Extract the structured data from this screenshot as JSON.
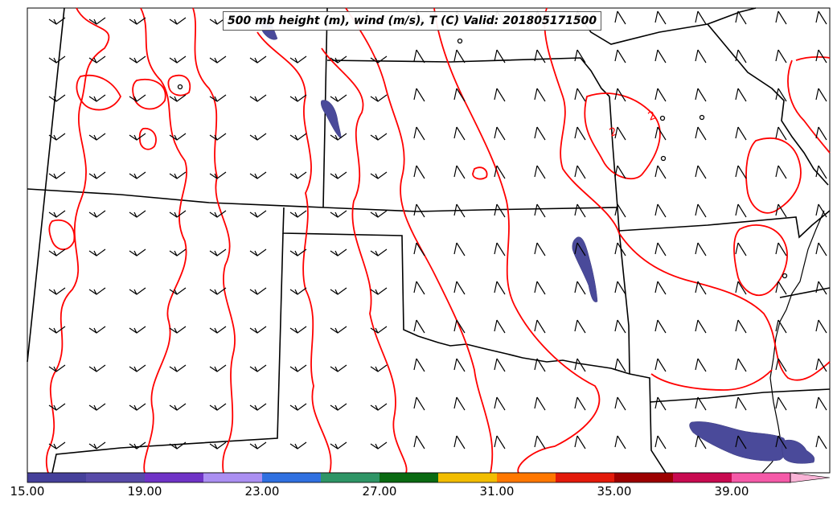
{
  "title": "500 mb height (m), wind (m/s), T (C) Valid: 201805171500",
  "colorbar": {
    "colors": [
      "#45409a",
      "#574aa8",
      "#6f33c6",
      "#ab8ff2",
      "#3070e0",
      "#2e9566",
      "#0a6a12",
      "#f2bd00",
      "#ff7700",
      "#e31a0a",
      "#9c0000",
      "#c80a50",
      "#f55aa8"
    ],
    "tick_labels": [
      "15.00",
      "19.00",
      "23.00",
      "27.00",
      "31.00",
      "35.00",
      "39.00"
    ],
    "extend_color": "#f9b3d6"
  },
  "colors": {
    "contour": "#ff0000",
    "borders": "#000000",
    "fill_shading": "#4a4a9a"
  },
  "contour_label": "2",
  "icons": [
    "wind-barb-icon",
    "state-border",
    "temperature-contour",
    "colorbar"
  ]
}
